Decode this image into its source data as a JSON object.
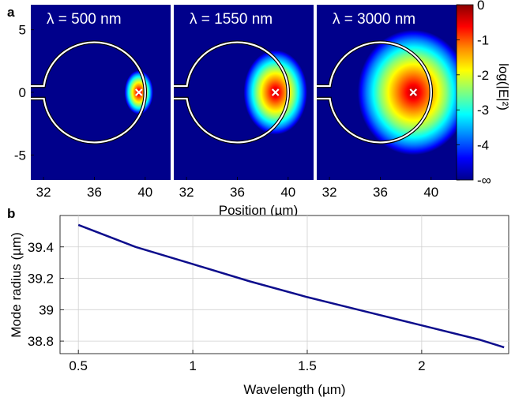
{
  "panels": {
    "a": {
      "label": "a"
    },
    "b": {
      "label": "b"
    }
  },
  "chart_data": [
    {
      "type": "heatmap",
      "panel": "a",
      "subplots": [
        {
          "title": "λ = 500 nm",
          "mode_center": [
            39.5,
            0
          ],
          "spot_radius_x": 0.9,
          "spot_radius_y": 1.4
        },
        {
          "title": "λ = 1550 nm",
          "mode_center": [
            39.0,
            0
          ],
          "spot_radius_x": 2.0,
          "spot_radius_y": 2.7
        },
        {
          "title": "λ = 3000 nm",
          "mode_center": [
            38.6,
            0
          ],
          "spot_radius_x": 3.5,
          "spot_radius_y": 4.0
        }
      ],
      "xlabel": "Position (µm)",
      "xticks": [
        "32",
        "36",
        "40"
      ],
      "xlim": [
        31,
        42
      ],
      "yticks": [
        "5",
        "0",
        "-5"
      ],
      "ylim": [
        -7,
        7
      ],
      "colorbar": {
        "label": "log(|E|²)",
        "ticks": [
          "0",
          "-1",
          "-2",
          "-3",
          "-4",
          "-∞"
        ],
        "colors": [
          "#8b0000",
          "#ff0000",
          "#ff8c00",
          "#ffff00",
          "#7fff7f",
          "#00ffff",
          "#007fff",
          "#0000ff",
          "#00008b"
        ]
      },
      "resonator": {
        "center": [
          36,
          0
        ],
        "radius": 4,
        "waveguide_halfwidth": 0.5,
        "waveguide_start": 31
      }
    },
    {
      "type": "line",
      "panel": "b",
      "x": [
        0.5,
        0.75,
        1.0,
        1.25,
        1.5,
        1.75,
        2.0,
        2.25,
        2.36
      ],
      "y": [
        39.54,
        39.4,
        39.29,
        39.18,
        39.08,
        38.99,
        38.9,
        38.81,
        38.76
      ],
      "xlabel": "Wavelength (µm)",
      "ylabel": "Mode radius (µm)",
      "xticks": [
        "0.5",
        "1",
        "1.5",
        "2"
      ],
      "yticks": [
        "39.4",
        "39.2",
        "39",
        "38.8"
      ],
      "xlim": [
        0.42,
        2.38
      ],
      "ylim": [
        38.72,
        39.6
      ],
      "grid": true,
      "line_color": "#0d0d8c"
    }
  ]
}
